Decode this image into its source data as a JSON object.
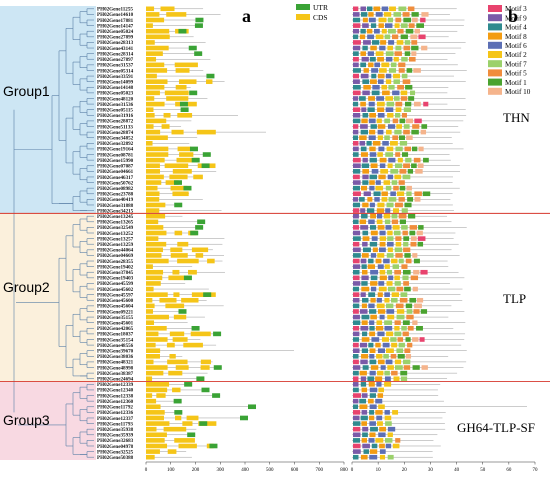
{
  "panels": {
    "a": "a",
    "b": "b"
  },
  "legend_a": [
    {
      "label": "UTR",
      "color": "#3aa335"
    },
    {
      "label": "CDS",
      "color": "#f5c518"
    }
  ],
  "legend_b": [
    {
      "label": "Motif 3",
      "color": "#e8436e"
    },
    {
      "label": "Motif 9",
      "color": "#7a5aa8"
    },
    {
      "label": "Motif 4",
      "color": "#2f8a8f"
    },
    {
      "label": "Motif 8",
      "color": "#f39c12"
    },
    {
      "label": "Motif 6",
      "color": "#5c6fb5"
    },
    {
      "label": "Motif 2",
      "color": "#f5c518"
    },
    {
      "label": "Motif 7",
      "color": "#9bd16b"
    },
    {
      "label": "Motif 5",
      "color": "#f08d3c"
    },
    {
      "label": "Motif 1",
      "color": "#4aa32f"
    },
    {
      "label": "Motif 10",
      "color": "#f5b48c"
    }
  ],
  "groups": [
    {
      "label": "Group1",
      "color": "#cde6f4"
    },
    {
      "label": "Group2",
      "color": "#fbf0dc"
    },
    {
      "label": "Group3",
      "color": "#f8d9e2"
    }
  ],
  "families": [
    "THN",
    "TLP",
    "GH64-TLP-SF"
  ],
  "axis_a": [
    "0",
    "100",
    "200",
    "300",
    "400",
    "500",
    "600",
    "700",
    "800"
  ],
  "axis_b": [
    "0",
    "10",
    "20",
    "30",
    "40",
    "50",
    "60",
    "70"
  ],
  "genes": [
    "PH02Gene11255",
    "PH02Gene14610",
    "PH02Gene17881",
    "PH02Gene14147",
    "PH02Gene05024",
    "PH02Gene27899",
    "PH02Gene28313",
    "PH02Gene43141",
    "PH02Gene28314",
    "PH02Gene27897",
    "PH02Gene31537",
    "PH02Gene05314",
    "PH02Gene33591",
    "PH02Gene14099",
    "PH02Gene14148",
    "PH02Gene05023",
    "PH02Gene48120",
    "PH02Gene31536",
    "PH02Gene05115",
    "PH02Gene31916",
    "PH02Gene28872",
    "PH02Gene51133",
    "PH02Gene28874",
    "PH02Gene34852",
    "PH02Gene32892",
    "PH02Gene19164",
    "PH02Gene08781",
    "PH02Gene15990",
    "PH02Gene07087",
    "PH02Gene04661",
    "PH02Gene46317",
    "PH02Gene50762",
    "PH02Gene08982",
    "PH02Gene23788",
    "PH02Gene40419",
    "PH02Gene31888",
    "PH02Gene34215",
    "PH02Gene13245",
    "PH02Gene13265",
    "PH02Gene32549",
    "PH02Gene13252",
    "PH02Gene13257",
    "PH02Gene13259",
    "PH02Gene44064",
    "PH02Gene04669",
    "PH02Gene28355",
    "PH02Gene19402",
    "PH02Gene37845",
    "PH02Gene19403",
    "PH02Gene45599",
    "PH02Gene45602",
    "PH02Gene45597",
    "PH02Gene45600",
    "PH02Gene45604",
    "PH02Gene09221",
    "PH02Gene35155",
    "PH02Gene45601",
    "PH02Gene42065",
    "PH02Gene18037",
    "PH02Gene35154",
    "PH02Gene48556",
    "PH02Gene39670",
    "PH02Gene38036",
    "PH02Gene48321",
    "PH02Gene48998",
    "PH02Gene38387",
    "PH02Gene24694",
    "PH02Gene12339",
    "PH02Gene12340",
    "PH02Gene12338",
    "PH02Gene12360",
    "PH02Gene11792",
    "PH02Gene12336",
    "PH02Gene12337",
    "PH02Gene11793",
    "PH02Gene35938",
    "PH02Gene35939",
    "PH02Gene32683",
    "PH02Gene04978",
    "PH02Gene32525",
    "PH02Gene50388"
  ]
}
